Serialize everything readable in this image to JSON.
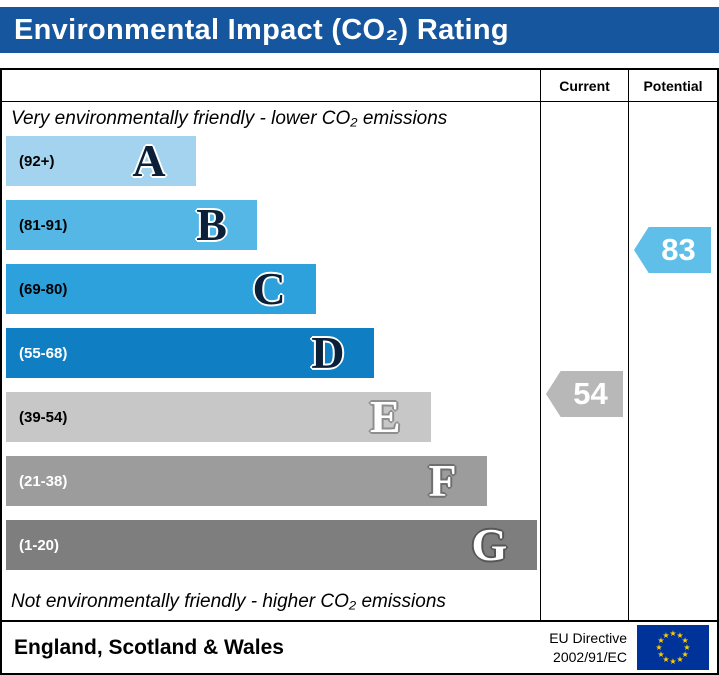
{
  "title": "Environmental Impact (CO₂) Rating",
  "title_bar_color": "#15569e",
  "columns": {
    "current": "Current",
    "potential": "Potential"
  },
  "top_caption": "Very environmentally friendly - lower CO₂ emissions",
  "bottom_caption": "Not environmentally friendly - higher CO₂ emissions",
  "bands": [
    {
      "letter": "A",
      "range": "(92+)",
      "width_pct": 35.5,
      "color": "#a3d3ee",
      "range_color": "#000000",
      "letter_color": "#0b2038",
      "halo": "#ffffff"
    },
    {
      "letter": "B",
      "range": "(81-91)",
      "width_pct": 47.0,
      "color": "#55b7e6",
      "range_color": "#000000",
      "letter_color": "#0b2038",
      "halo": "#ffffff"
    },
    {
      "letter": "C",
      "range": "(69-80)",
      "width_pct": 58.0,
      "color": "#2da1dc",
      "range_color": "#000000",
      "letter_color": "#0b2038",
      "halo": "#ffffff"
    },
    {
      "letter": "D",
      "range": "(55-68)",
      "width_pct": 69.0,
      "color": "#0f7ec2",
      "range_color": "#ffffff",
      "letter_color": "#0b2038",
      "halo": "#ffffff"
    },
    {
      "letter": "E",
      "range": "(39-54)",
      "width_pct": 79.5,
      "color": "#c7c7c7",
      "range_color": "#000000",
      "letter_color": "#ffffff",
      "halo": "#8f8f8f"
    },
    {
      "letter": "F",
      "range": "(21-38)",
      "width_pct": 90.0,
      "color": "#9c9c9c",
      "range_color": "#ffffff",
      "letter_color": "#ffffff",
      "halo": "#6f6f6f"
    },
    {
      "letter": "G",
      "range": "(1-20)",
      "width_pct": 99.5,
      "color": "#7e7e7e",
      "range_color": "#ffffff",
      "letter_color": "#ffffff",
      "halo": "#565656"
    }
  ],
  "current": {
    "value": "54",
    "band": "E",
    "color": "#b8b8b8"
  },
  "potential": {
    "value": "83",
    "band": "B",
    "color": "#5fbfe8"
  },
  "footer": {
    "region": "England, Scotland & Wales",
    "directive_line1": "EU Directive",
    "directive_line2": "2002/91/EC",
    "flag_bg": "#003399",
    "flag_star": "#ffcc00"
  },
  "chart_data": {
    "type": "bar",
    "title": "Environmental Impact (CO₂) Rating",
    "categories": [
      "A",
      "B",
      "C",
      "D",
      "E",
      "F",
      "G"
    ],
    "band_ranges": [
      "92+",
      "81-91",
      "69-80",
      "55-68",
      "39-54",
      "21-38",
      "1-20"
    ],
    "band_colors": [
      "#a3d3ee",
      "#55b7e6",
      "#2da1dc",
      "#0f7ec2",
      "#c7c7c7",
      "#9c9c9c",
      "#7e7e7e"
    ],
    "bar_relative_widths_pct": [
      35.5,
      47,
      58,
      69,
      79.5,
      90,
      99.5
    ],
    "current_rating": 54,
    "current_band": "E",
    "potential_rating": 83,
    "potential_band": "B",
    "top_caption": "Very environmentally friendly - lower CO₂ emissions",
    "bottom_caption": "Not environmentally friendly - higher CO₂ emissions",
    "region": "England, Scotland & Wales",
    "directive": "EU Directive 2002/91/EC",
    "legend_position": "none",
    "grid": false
  }
}
